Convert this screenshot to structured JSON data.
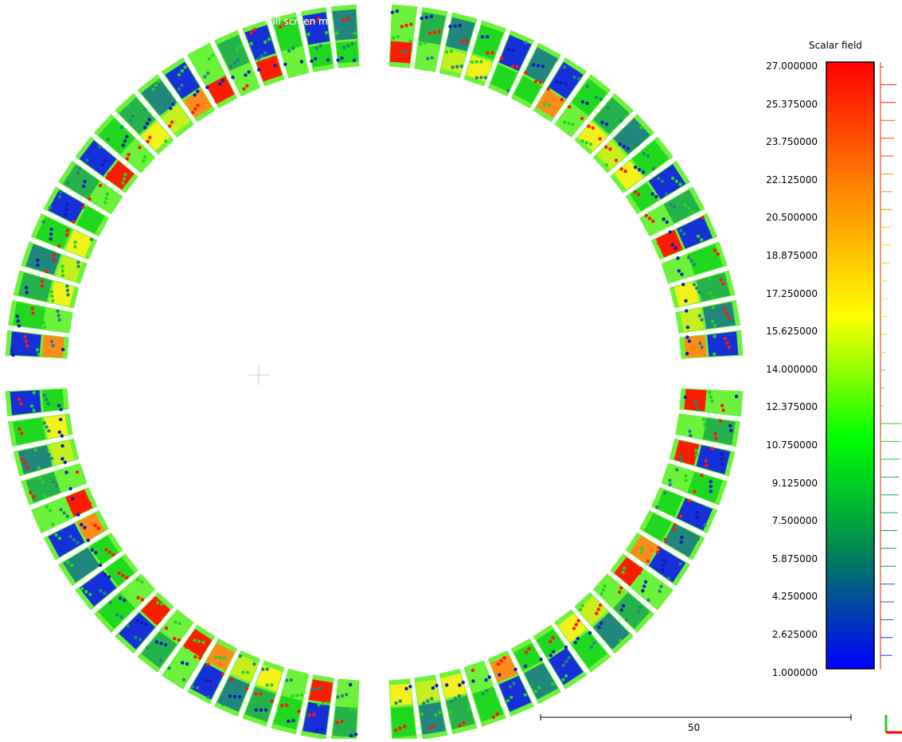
{
  "viewport": {
    "overlay_message": "Full screen mo"
  },
  "scalar_field": {
    "title": "Scalar field",
    "labels": [
      "27.000000",
      "25.375000",
      "23.750000",
      "22.125000",
      "20.500000",
      "18.875000",
      "17.250000",
      "15.625000",
      "14.000000",
      "12.375000",
      "10.750000",
      "9.125000",
      "7.500000",
      "5.875000",
      "4.250000",
      "2.625000",
      "1.000000"
    ],
    "gradient_colors": [
      "#ff0000",
      "#ff7f00",
      "#ffff00",
      "#00ff00",
      "#008a50",
      "#0000ff"
    ]
  },
  "scale_bar": {
    "label": "50"
  },
  "palette": {
    "blue": "#1530d8",
    "dark_blue": "#0a1fb8",
    "teal": "#21867c",
    "green": "#1fd81f",
    "light_green": "#6cf23a",
    "mid_green": "#26b24a",
    "yellow_green": "#c6ef1e",
    "yellow": "#f2f21a",
    "orange": "#ff8a1a",
    "red": "#ff1a00"
  }
}
